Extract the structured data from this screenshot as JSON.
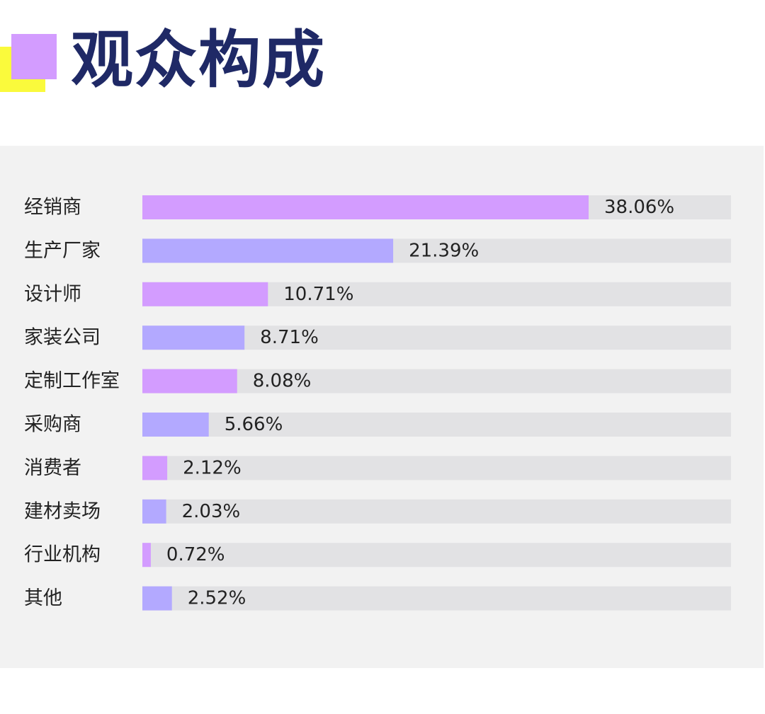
{
  "title": "观众构成",
  "colors": {
    "title": "#1f2966",
    "accent_yellow": "#fafa3c",
    "accent_purple": "#d39cff",
    "panel_bg": "#f2f2f2",
    "track": "#e2e2e4",
    "bar_odd": "#d39cff",
    "bar_even": "#b3a9ff",
    "text": "#222222"
  },
  "chart_data": {
    "type": "bar",
    "orientation": "horizontal",
    "categories": [
      "经销商",
      "生产厂家",
      "设计师",
      "家装公司",
      "定制工作室",
      "采购商",
      "消费者",
      "建材卖场",
      "行业机构",
      "其他"
    ],
    "values": [
      38.06,
      21.39,
      10.71,
      8.71,
      8.08,
      5.66,
      2.12,
      2.03,
      0.72,
      2.52
    ],
    "value_labels": [
      "38.06%",
      "21.39%",
      "10.71%",
      "8.71%",
      "8.08%",
      "5.66%",
      "2.12%",
      "2.03%",
      "0.72%",
      "2.52%"
    ],
    "xlim": [
      0,
      50
    ],
    "grid": false,
    "legend": "none"
  }
}
